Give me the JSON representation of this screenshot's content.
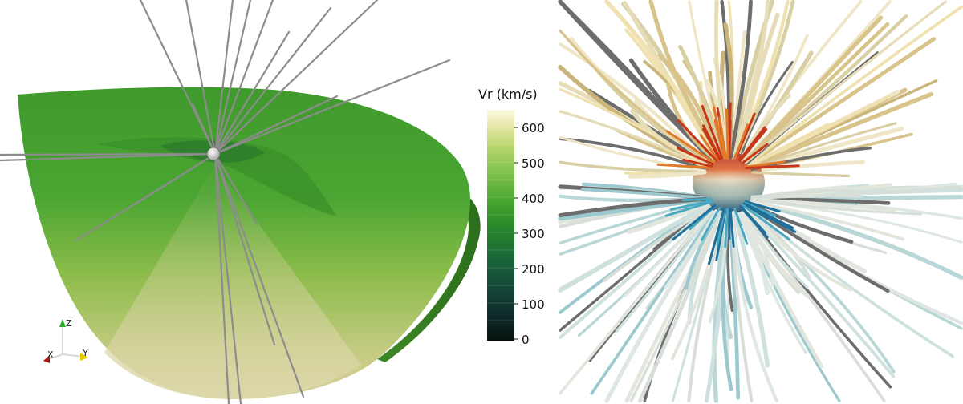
{
  "colorbar": {
    "title": "Vr (km/s)",
    "ticks": [
      "600",
      "500",
      "400",
      "300",
      "200",
      "100",
      "0"
    ],
    "range": [
      0,
      650
    ],
    "colors": [
      "#fdfbe0",
      "#e5e7a9",
      "#b7d66c",
      "#7cc04b",
      "#46a52e",
      "#2a8a2a",
      "#1b6a38",
      "#154d3b",
      "#0e2e2c",
      "#07120f"
    ]
  },
  "axes_triad": {
    "x_label": "X",
    "y_label": "Y",
    "z_label": "Z",
    "x_color": "#b01515",
    "y_color": "#e6c800",
    "z_color": "#22b022"
  },
  "panels": {
    "left": "meridional-slice-with-field-lines",
    "right": "3d-streamlines-around-sphere"
  },
  "colors": {
    "background": "#ffffff",
    "field_line": "#8c8c8c",
    "slice_dark": "#3f9a2c",
    "slice_light": "#d6d29c"
  }
}
